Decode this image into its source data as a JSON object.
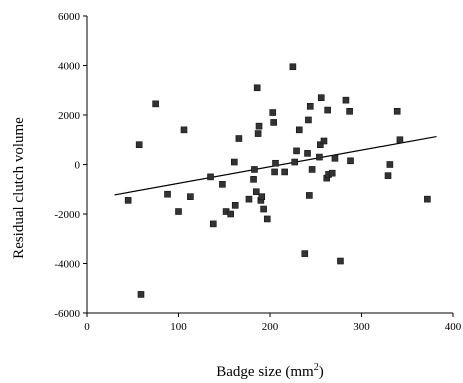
{
  "chart_data": {
    "type": "scatter",
    "title": "",
    "xlabel": {
      "main": "Badge size (mm",
      "superscript": "2",
      "close": ")"
    },
    "ylabel": "Residual clutch volume",
    "xlim": [
      0,
      400
    ],
    "ylim": [
      -6000,
      6000
    ],
    "x_ticks": [
      0,
      100,
      200,
      300,
      400
    ],
    "y_ticks": [
      -6000,
      -4000,
      -2000,
      0,
      2000,
      4000,
      6000
    ],
    "grid": false,
    "legend": "none",
    "point_color": "#333333",
    "points": [
      {
        "x": 45,
        "y": -1450
      },
      {
        "x": 57,
        "y": 800
      },
      {
        "x": 59,
        "y": -5250
      },
      {
        "x": 75,
        "y": 2450
      },
      {
        "x": 88,
        "y": -1200
      },
      {
        "x": 100,
        "y": -1900
      },
      {
        "x": 106,
        "y": 1400
      },
      {
        "x": 113,
        "y": -1300
      },
      {
        "x": 135,
        "y": -500
      },
      {
        "x": 138,
        "y": -2400
      },
      {
        "x": 148,
        "y": -800
      },
      {
        "x": 152,
        "y": -1900
      },
      {
        "x": 157,
        "y": -2000
      },
      {
        "x": 161,
        "y": 100
      },
      {
        "x": 162,
        "y": -1650
      },
      {
        "x": 166,
        "y": 1050
      },
      {
        "x": 177,
        "y": -1400
      },
      {
        "x": 182,
        "y": -600
      },
      {
        "x": 183,
        "y": -200
      },
      {
        "x": 185,
        "y": -1100
      },
      {
        "x": 186,
        "y": 3100
      },
      {
        "x": 187,
        "y": 1250
      },
      {
        "x": 188,
        "y": 1550
      },
      {
        "x": 190,
        "y": -1450
      },
      {
        "x": 191,
        "y": -1300
      },
      {
        "x": 193,
        "y": -1800
      },
      {
        "x": 197,
        "y": -2200
      },
      {
        "x": 203,
        "y": 2100
      },
      {
        "x": 204,
        "y": 1700
      },
      {
        "x": 205,
        "y": -300
      },
      {
        "x": 206,
        "y": 50
      },
      {
        "x": 216,
        "y": -300
      },
      {
        "x": 225,
        "y": 3950
      },
      {
        "x": 227,
        "y": 100
      },
      {
        "x": 229,
        "y": 550
      },
      {
        "x": 232,
        "y": 1400
      },
      {
        "x": 238,
        "y": -3600
      },
      {
        "x": 241,
        "y": 450
      },
      {
        "x": 242,
        "y": 1800
      },
      {
        "x": 243,
        "y": -1250
      },
      {
        "x": 244,
        "y": 2350
      },
      {
        "x": 246,
        "y": -200
      },
      {
        "x": 254,
        "y": 300
      },
      {
        "x": 255,
        "y": 800
      },
      {
        "x": 256,
        "y": 2700
      },
      {
        "x": 259,
        "y": 950
      },
      {
        "x": 262,
        "y": -550
      },
      {
        "x": 263,
        "y": 2200
      },
      {
        "x": 264,
        "y": -400
      },
      {
        "x": 268,
        "y": -350
      },
      {
        "x": 271,
        "y": 250
      },
      {
        "x": 277,
        "y": -3900
      },
      {
        "x": 283,
        "y": 2600
      },
      {
        "x": 287,
        "y": 2150
      },
      {
        "x": 288,
        "y": 150
      },
      {
        "x": 329,
        "y": -450
      },
      {
        "x": 331,
        "y": 0
      },
      {
        "x": 339,
        "y": 2150
      },
      {
        "x": 342,
        "y": 1000
      },
      {
        "x": 372,
        "y": -1400
      }
    ],
    "trendline": {
      "x": [
        30,
        382
      ],
      "y": [
        -1230,
        1130
      ]
    }
  }
}
